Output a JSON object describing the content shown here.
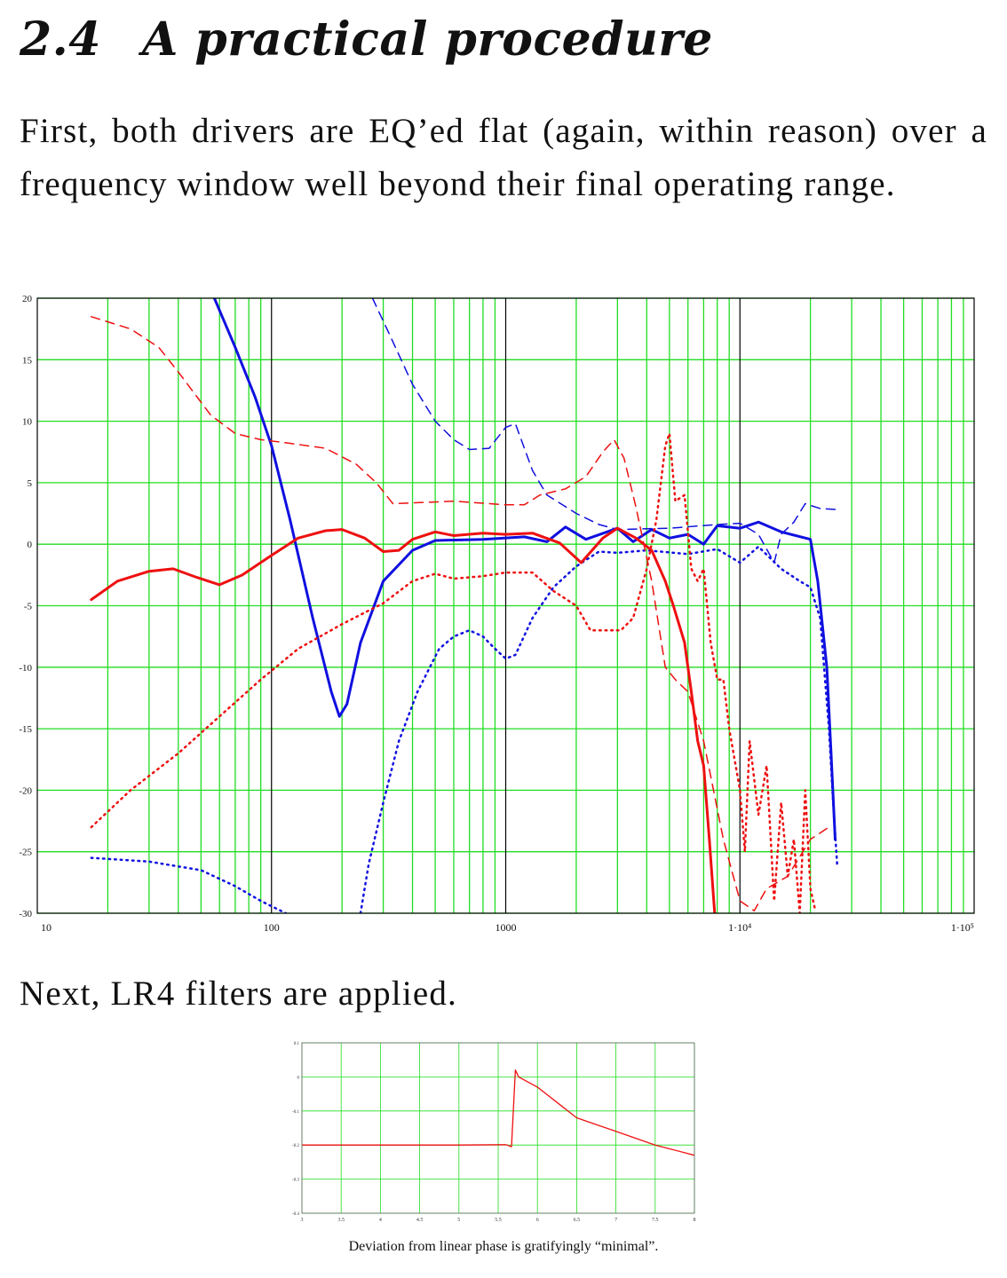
{
  "section": {
    "number": "2.4",
    "title": "A practical procedure"
  },
  "paragraphs": [
    "First, both drivers are EQ’ed flat (again, within reason) over a frequency window well beyond their final operating range.",
    "Next, LR4 filters are applied."
  ],
  "caption": "Deviation from linear phase is gratifyingly “minimal”.",
  "colors": {
    "grid": "#22dd22",
    "decade_grid": "#000000",
    "blue": "#1010e0",
    "red": "#ee1010"
  },
  "chart_data": [
    {
      "type": "line",
      "xscale": "log",
      "xlim": [
        10,
        100000
      ],
      "ylim": [
        -30,
        20
      ],
      "grid": true,
      "x_tick_labels": [
        "10",
        "100",
        "1000",
        "1·10⁴",
        "1·10⁵"
      ],
      "y_tick_labels": [
        "20",
        "15",
        "10",
        "5",
        "0",
        "-5",
        "-10",
        "-15",
        "-20",
        "-25",
        "-30"
      ],
      "series": [
        {
          "color": "blue",
          "style": "solid",
          "width": 3,
          "points": [
            [
              57,
              20
            ],
            [
              70,
              16
            ],
            [
              85,
              12
            ],
            [
              100,
              8
            ],
            [
              120,
              2
            ],
            [
              150,
              -6
            ],
            [
              180,
              -12
            ],
            [
              195,
              -14
            ],
            [
              210,
              -13
            ],
            [
              240,
              -8
            ],
            [
              300,
              -3
            ],
            [
              400,
              -0.5
            ],
            [
              500,
              0.3
            ],
            [
              800,
              0.4
            ],
            [
              1200,
              0.6
            ],
            [
              1500,
              0.2
            ],
            [
              1800,
              1.4
            ],
            [
              2200,
              0.4
            ],
            [
              3000,
              1.3
            ],
            [
              3500,
              0.2
            ],
            [
              4200,
              1.2
            ],
            [
              5000,
              0.5
            ],
            [
              6000,
              0.8
            ],
            [
              7000,
              0
            ],
            [
              8000,
              1.5
            ],
            [
              10000,
              1.3
            ],
            [
              12000,
              1.8
            ],
            [
              15000,
              1
            ],
            [
              20000,
              0.4
            ],
            [
              21500,
              -3
            ],
            [
              23500,
              -10
            ],
            [
              24500,
              -17
            ],
            [
              25500,
              -24
            ]
          ]
        },
        {
          "color": "blue",
          "style": "dashed",
          "width": 1.5,
          "points": [
            [
              270,
              20
            ],
            [
              320,
              17
            ],
            [
              400,
              13
            ],
            [
              500,
              10
            ],
            [
              600,
              8.5
            ],
            [
              700,
              7.7
            ],
            [
              850,
              7.8
            ],
            [
              1000,
              9.5
            ],
            [
              1100,
              9.8
            ],
            [
              1300,
              6
            ],
            [
              1500,
              4
            ],
            [
              2000,
              2.5
            ],
            [
              2500,
              1.6
            ],
            [
              3000,
              1.2
            ],
            [
              5000,
              1.3
            ],
            [
              8000,
              1.6
            ],
            [
              10000,
              1.7
            ],
            [
              12000,
              0.8
            ],
            [
              14000,
              -1.5
            ],
            [
              15000,
              0.8
            ],
            [
              17000,
              1.8
            ],
            [
              19000,
              3.3
            ],
            [
              22000,
              2.9
            ],
            [
              27000,
              2.8
            ]
          ]
        },
        {
          "color": "blue",
          "style": "dotted",
          "width": 2.5,
          "points": [
            [
              17,
              -25.5
            ],
            [
              30,
              -25.8
            ],
            [
              50,
              -26.5
            ],
            [
              70,
              -27.8
            ],
            [
              90,
              -29
            ],
            [
              115,
              -30
            ]
          ]
        },
        {
          "color": "blue",
          "style": "dotted",
          "width": 2.5,
          "points": [
            [
              240,
              -30
            ],
            [
              260,
              -26
            ],
            [
              300,
              -21
            ],
            [
              350,
              -16
            ],
            [
              420,
              -12
            ],
            [
              520,
              -8.5
            ],
            [
              600,
              -7.5
            ],
            [
              700,
              -7
            ],
            [
              800,
              -7.5
            ],
            [
              900,
              -8.5
            ],
            [
              1000,
              -9.3
            ],
            [
              1100,
              -9
            ],
            [
              1300,
              -6
            ],
            [
              1600,
              -3.5
            ],
            [
              2000,
              -1.8
            ],
            [
              2500,
              -0.6
            ],
            [
              3000,
              -0.7
            ],
            [
              4000,
              -0.5
            ],
            [
              6000,
              -0.8
            ],
            [
              8000,
              -0.4
            ],
            [
              10000,
              -1.5
            ],
            [
              12000,
              -0.2
            ],
            [
              15000,
              -2
            ],
            [
              18000,
              -3
            ],
            [
              20000,
              -3.5
            ],
            [
              22000,
              -6
            ],
            [
              24000,
              -15
            ],
            [
              25000,
              -21
            ],
            [
              26000,
              -26
            ]
          ]
        },
        {
          "color": "red",
          "style": "solid",
          "width": 3,
          "points": [
            [
              17,
              -4.5
            ],
            [
              22,
              -3
            ],
            [
              30,
              -2.2
            ],
            [
              38,
              -2
            ],
            [
              48,
              -2.7
            ],
            [
              60,
              -3.3
            ],
            [
              75,
              -2.5
            ],
            [
              100,
              -0.9
            ],
            [
              130,
              0.5
            ],
            [
              170,
              1.1
            ],
            [
              200,
              1.2
            ],
            [
              250,
              0.5
            ],
            [
              300,
              -0.6
            ],
            [
              350,
              -0.5
            ],
            [
              400,
              0.4
            ],
            [
              500,
              1
            ],
            [
              600,
              0.7
            ],
            [
              800,
              0.9
            ],
            [
              1000,
              0.8
            ],
            [
              1300,
              0.9
            ],
            [
              1700,
              0.1
            ],
            [
              2100,
              -1.5
            ],
            [
              2600,
              0.5
            ],
            [
              3000,
              1.3
            ],
            [
              3600,
              0.5
            ],
            [
              4200,
              -0.5
            ],
            [
              4800,
              -3
            ],
            [
              5200,
              -5
            ],
            [
              5800,
              -8
            ],
            [
              6200,
              -12
            ],
            [
              6600,
              -16
            ],
            [
              7000,
              -18
            ],
            [
              7400,
              -24
            ],
            [
              7800,
              -30
            ]
          ]
        },
        {
          "color": "red",
          "style": "dashed",
          "width": 1.5,
          "points": [
            [
              17,
              18.5
            ],
            [
              25,
              17.5
            ],
            [
              33,
              16
            ],
            [
              40,
              14
            ],
            [
              55,
              10.5
            ],
            [
              70,
              9
            ],
            [
              90,
              8.5
            ],
            [
              120,
              8.2
            ],
            [
              170,
              7.8
            ],
            [
              230,
              6.5
            ],
            [
              280,
              5
            ],
            [
              330,
              3.3
            ],
            [
              450,
              3.4
            ],
            [
              600,
              3.5
            ],
            [
              1000,
              3.2
            ],
            [
              1200,
              3.2
            ],
            [
              1400,
              4
            ],
            [
              1800,
              4.5
            ],
            [
              2200,
              5.5
            ],
            [
              2600,
              7.5
            ],
            [
              2900,
              8.5
            ],
            [
              3200,
              7
            ],
            [
              3600,
              3
            ],
            [
              4200,
              -3
            ],
            [
              4800,
              -10
            ],
            [
              5300,
              -11
            ],
            [
              6000,
              -12
            ],
            [
              7000,
              -16
            ],
            [
              8500,
              -24
            ],
            [
              10000,
              -29
            ],
            [
              11500,
              -29.8
            ],
            [
              13000,
              -28
            ],
            [
              16000,
              -27
            ],
            [
              20000,
              -24
            ],
            [
              24000,
              -23
            ]
          ]
        },
        {
          "color": "red",
          "style": "dotted",
          "width": 2.5,
          "points": [
            [
              17,
              -23
            ],
            [
              25,
              -20
            ],
            [
              40,
              -17
            ],
            [
              60,
              -14
            ],
            [
              90,
              -11
            ],
            [
              130,
              -8.5
            ],
            [
              200,
              -6.5
            ],
            [
              300,
              -4.8
            ],
            [
              400,
              -3
            ],
            [
              500,
              -2.4
            ],
            [
              600,
              -2.8
            ],
            [
              800,
              -2.6
            ],
            [
              1000,
              -2.3
            ],
            [
              1300,
              -2.3
            ],
            [
              1600,
              -3.8
            ],
            [
              2000,
              -5
            ],
            [
              2300,
              -7
            ],
            [
              2700,
              -7
            ],
            [
              3100,
              -7
            ],
            [
              3500,
              -6
            ],
            [
              4000,
              -2
            ],
            [
              4400,
              2
            ],
            [
              4800,
              8
            ],
            [
              5000,
              9
            ],
            [
              5300,
              3.5
            ],
            [
              5800,
              4
            ],
            [
              6200,
              -2
            ],
            [
              6600,
              -3
            ],
            [
              7000,
              -2
            ],
            [
              7500,
              -8
            ],
            [
              8000,
              -11
            ],
            [
              8500,
              -11
            ],
            [
              9000,
              -15
            ],
            [
              10000,
              -20
            ],
            [
              10500,
              -25
            ],
            [
              11000,
              -16
            ],
            [
              12000,
              -22
            ],
            [
              13000,
              -18
            ],
            [
              14000,
              -29
            ],
            [
              15000,
              -21
            ],
            [
              16000,
              -27
            ],
            [
              17000,
              -24
            ],
            [
              18000,
              -30
            ],
            [
              19000,
              -20
            ],
            [
              20000,
              -28
            ],
            [
              21000,
              -29.8
            ]
          ]
        }
      ]
    },
    {
      "type": "line",
      "xlim": [
        3,
        8
      ],
      "ylim": [
        -0.4,
        0.1
      ],
      "grid": true,
      "x_tick_labels": [
        "3",
        "3.5",
        "4",
        "4.5",
        "5",
        "5.5",
        "6",
        "6.5",
        "7",
        "7.5",
        "8"
      ],
      "y_tick_labels": [
        "0.1",
        "0",
        "-0.1",
        "-0.2",
        "-0.3",
        "-0.4"
      ],
      "series": [
        {
          "color": "red",
          "style": "solid",
          "width": 1.3,
          "points": [
            [
              3,
              -0.2
            ],
            [
              4,
              -0.2
            ],
            [
              5,
              -0.2
            ],
            [
              5.6,
              -0.199
            ],
            [
              5.67,
              -0.205
            ],
            [
              5.72,
              0.02
            ],
            [
              5.76,
              0.0
            ],
            [
              6,
              -0.03
            ],
            [
              6.5,
              -0.12
            ],
            [
              7,
              -0.16
            ],
            [
              7.5,
              -0.2
            ],
            [
              8,
              -0.23
            ]
          ]
        }
      ]
    }
  ]
}
